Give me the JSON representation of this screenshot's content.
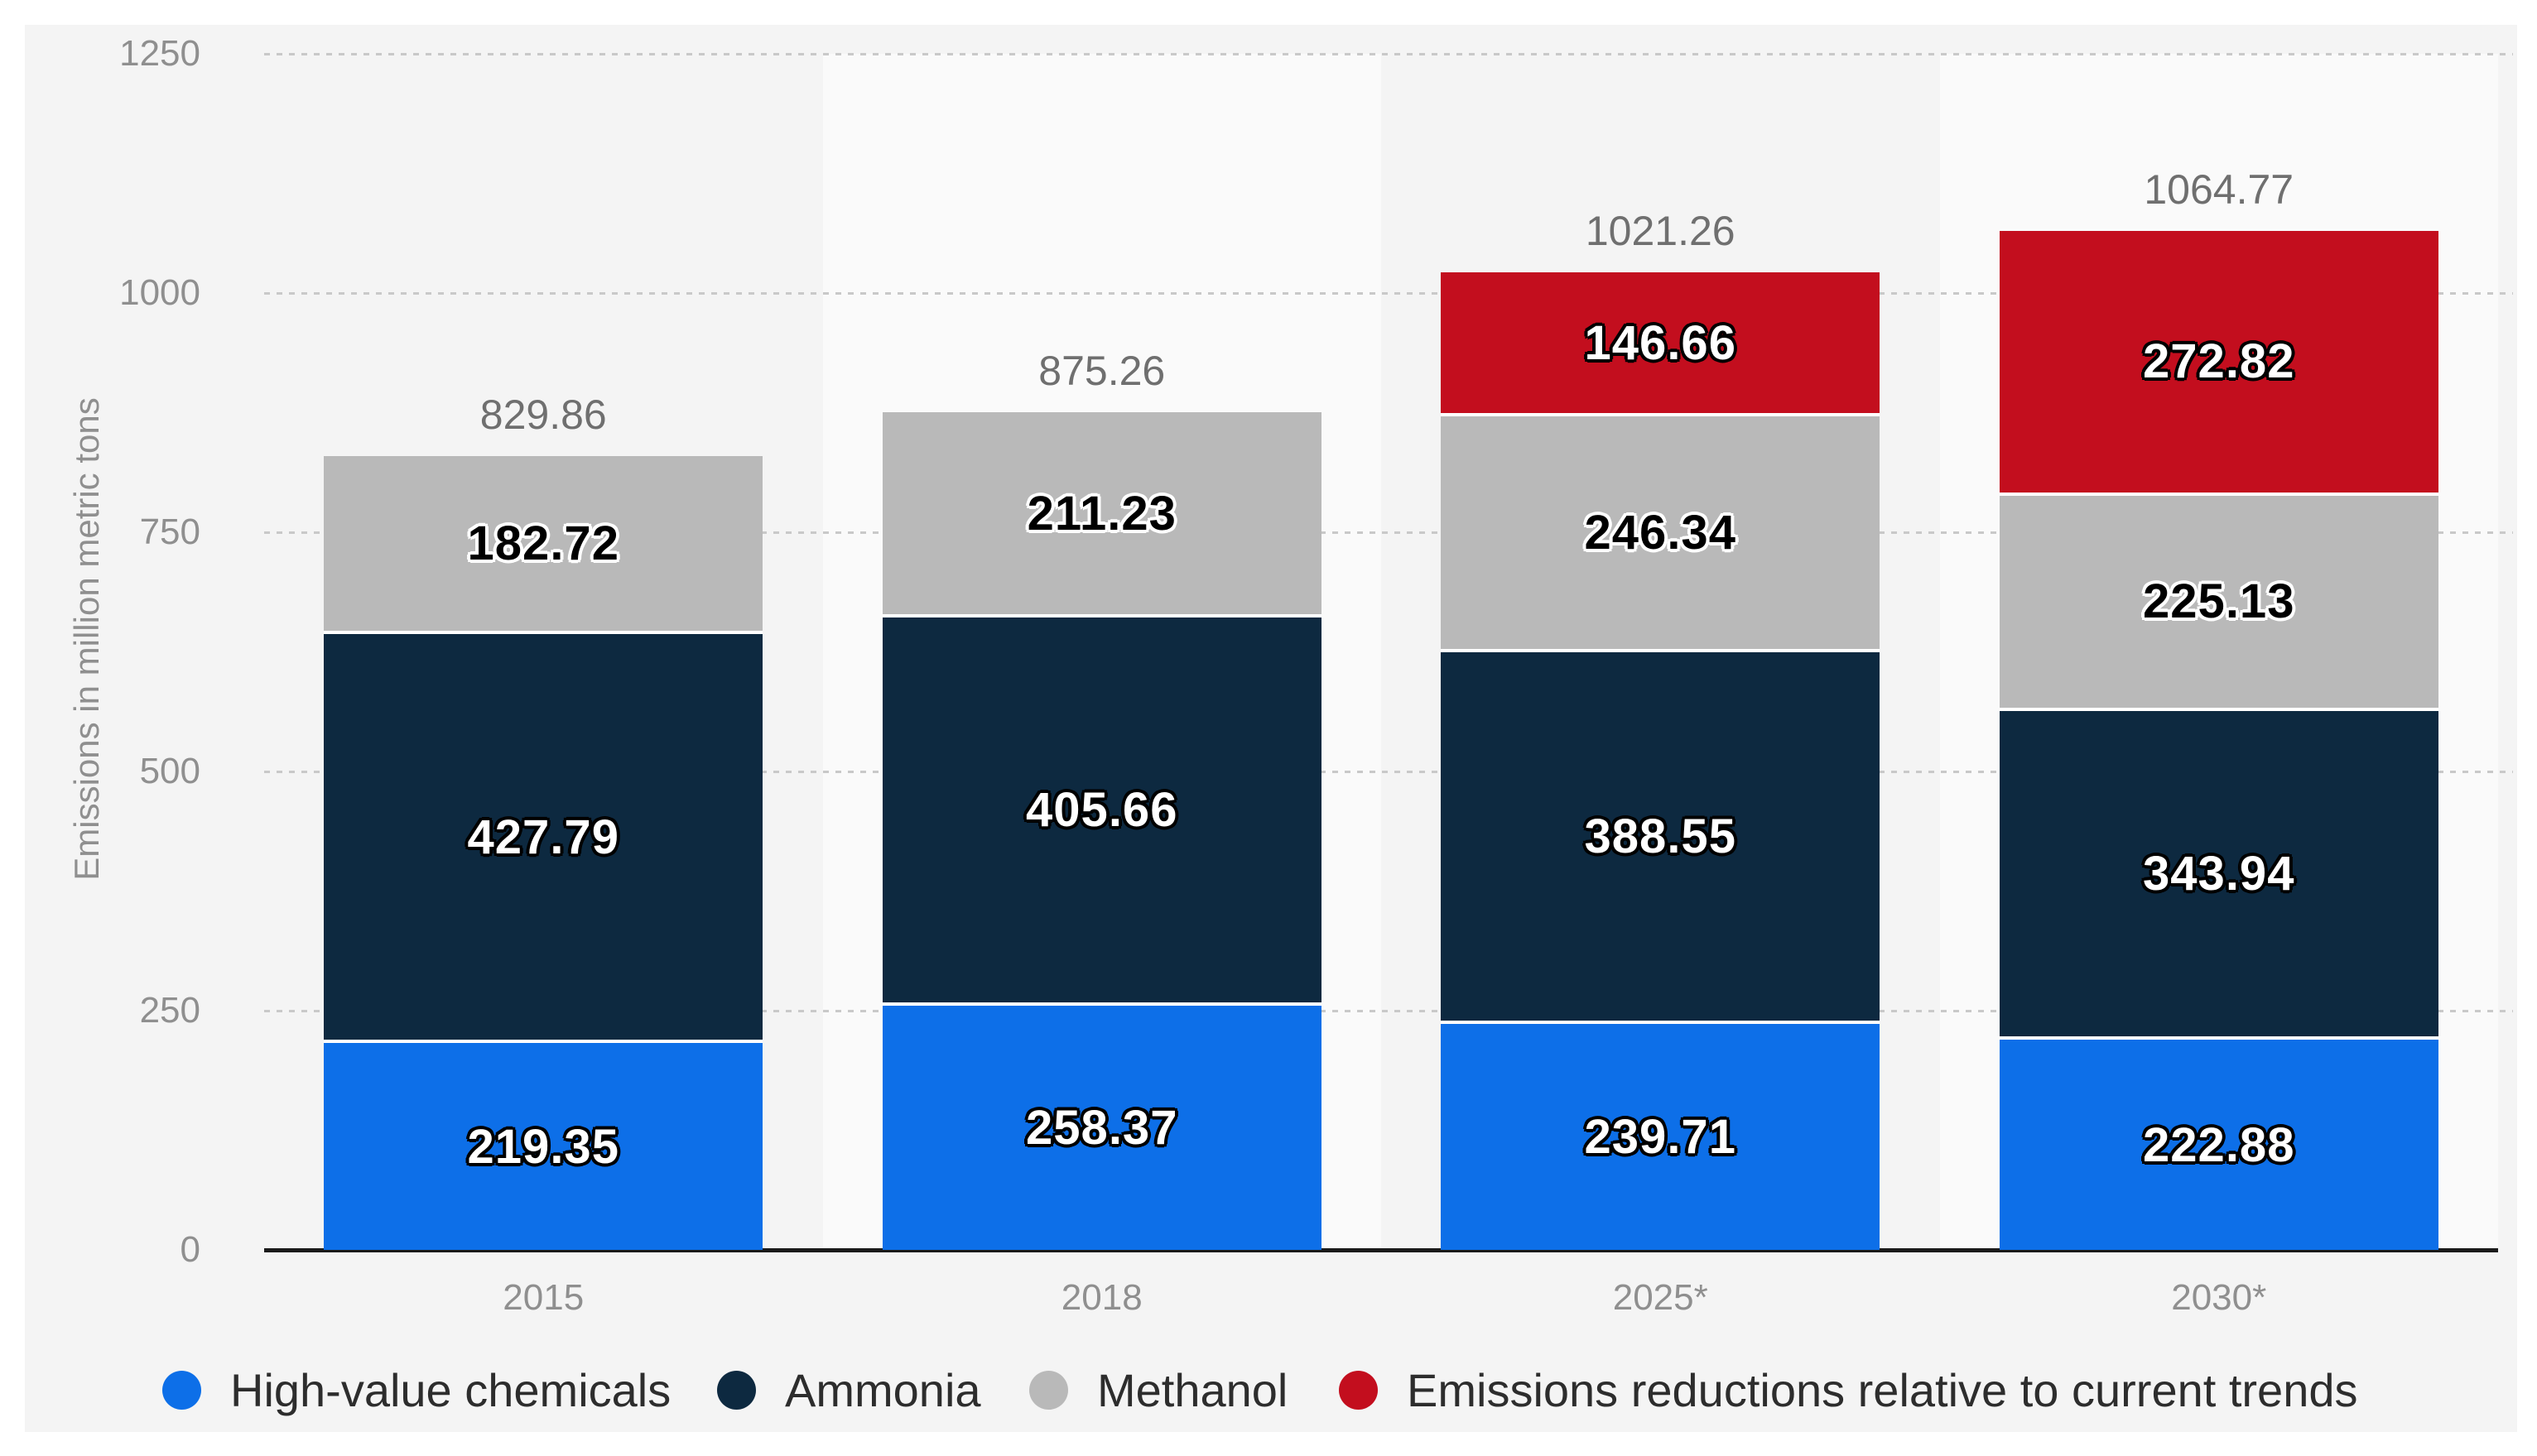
{
  "chart_data": {
    "type": "bar",
    "stacked": true,
    "title": "",
    "ylabel": "Emissions in million metric tons",
    "ylim": [
      0,
      1250
    ],
    "yticks": [
      0,
      250,
      500,
      750,
      1000,
      1250
    ],
    "grid": "dotted-horizontal",
    "legend_position": "bottom",
    "background": {
      "card": "#f4f4f4",
      "column_stripe": "#fafafa"
    },
    "categories": [
      "2015",
      "2018",
      "2025*",
      "2030*"
    ],
    "series": [
      {
        "name": "High-value chemicals",
        "color": "#0d6fe8",
        "label_style": "light",
        "values": [
          219.35,
          258.37,
          239.71,
          222.88
        ]
      },
      {
        "name": "Ammonia",
        "color": "#0d2940",
        "label_style": "light",
        "values": [
          427.79,
          405.66,
          388.55,
          343.94
        ]
      },
      {
        "name": "Methanol",
        "color": "#b9b9b9",
        "label_style": "dark",
        "values": [
          182.72,
          211.23,
          246.34,
          225.13
        ]
      },
      {
        "name": "Emissions reductions relative to current trends",
        "color": "#c30e1e",
        "label_style": "light",
        "values": [
          null,
          null,
          146.66,
          272.82
        ]
      }
    ],
    "totals": [
      829.86,
      875.26,
      1021.26,
      1064.77
    ]
  }
}
